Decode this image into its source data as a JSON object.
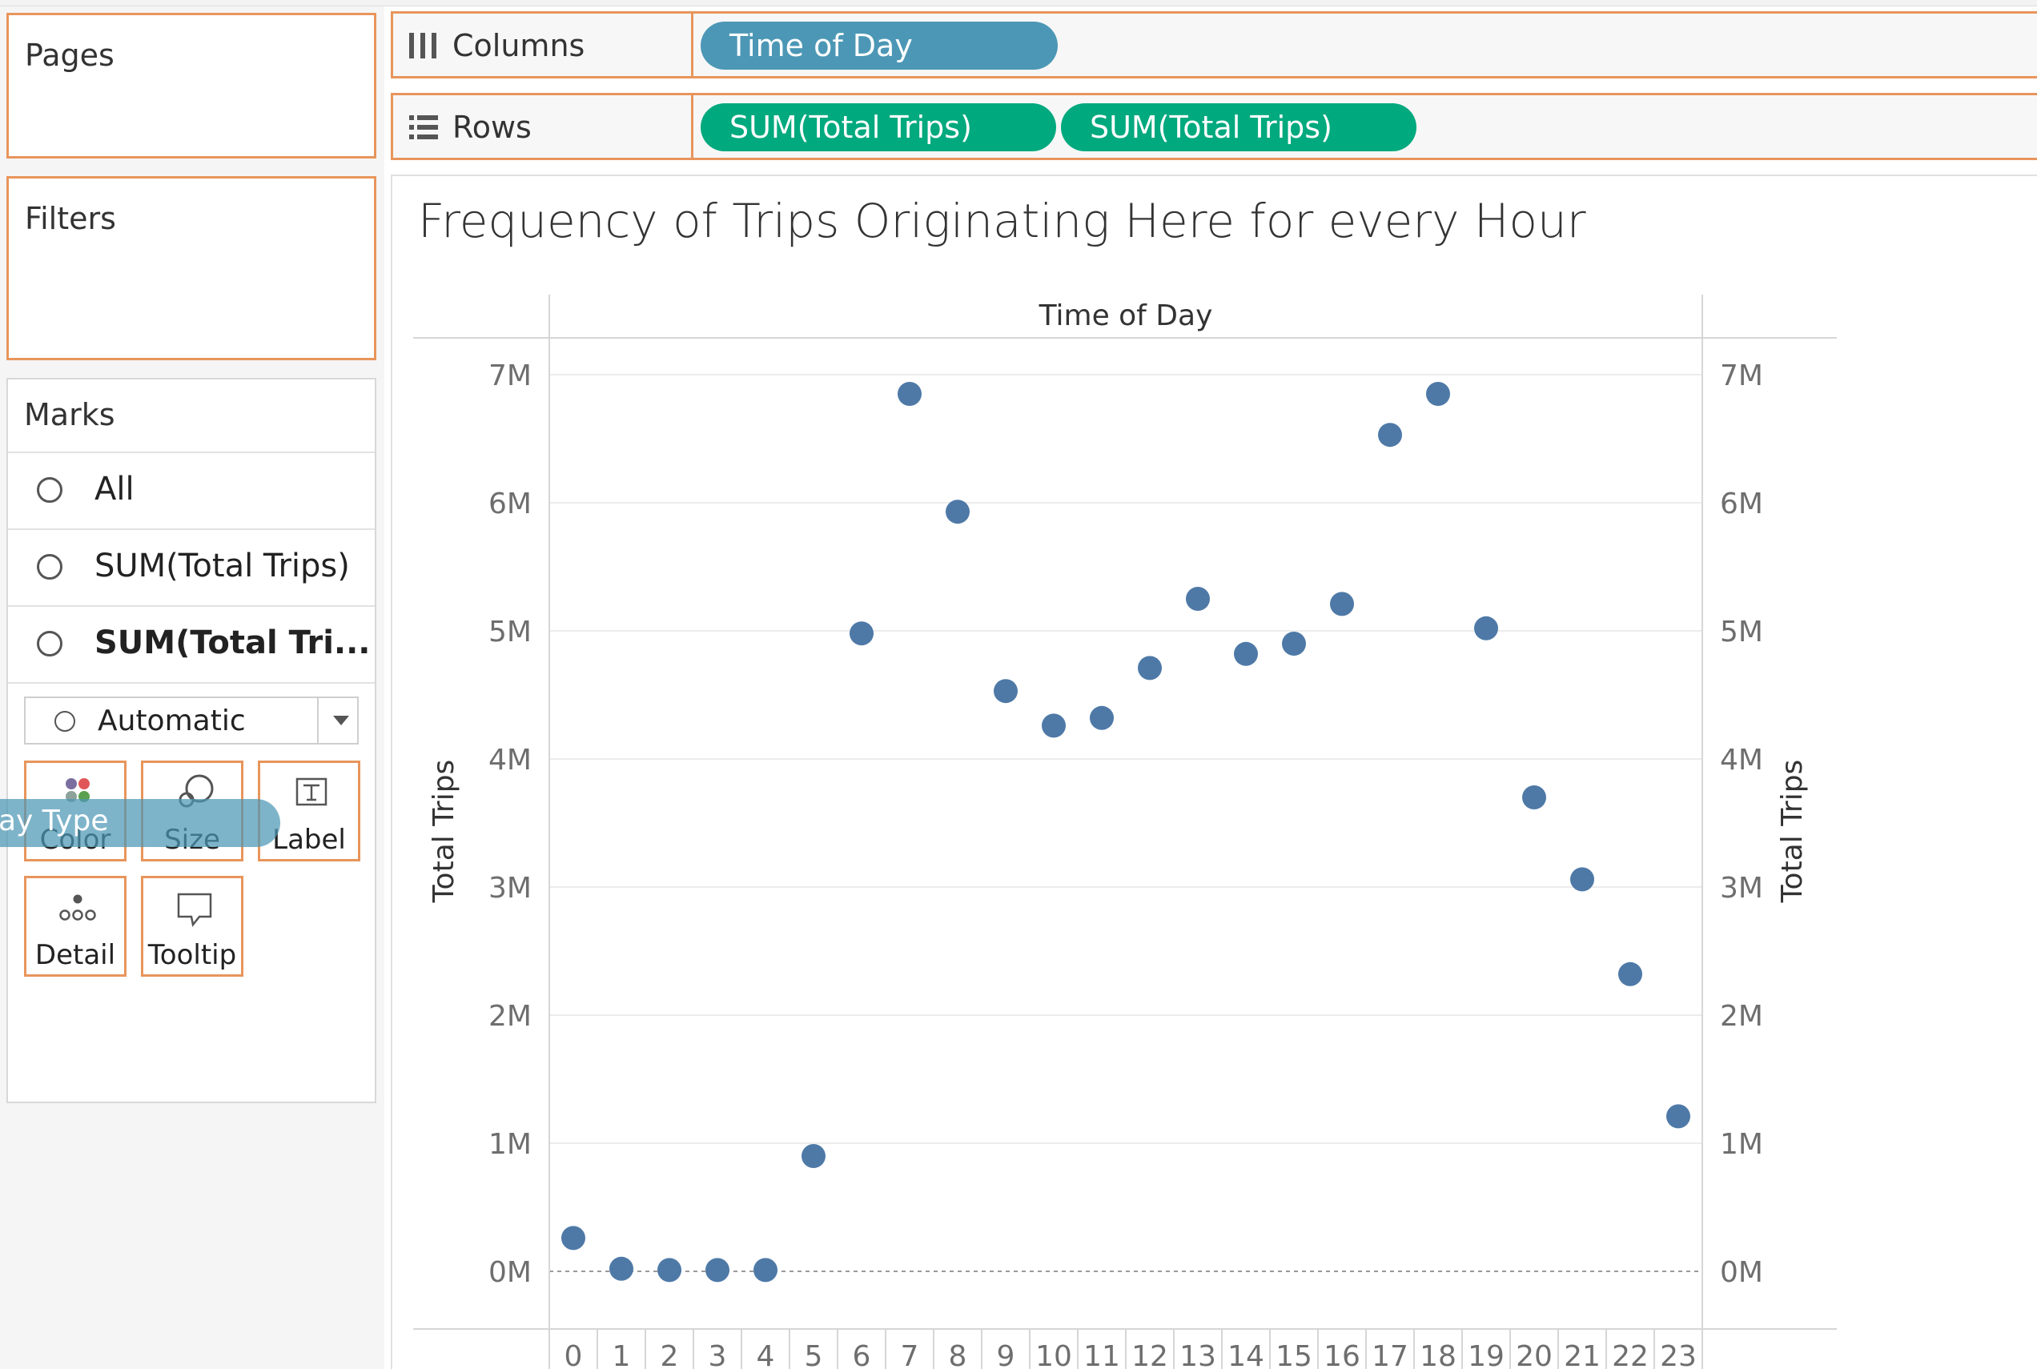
{
  "left_panels": {
    "pages_label": "Pages",
    "filters_label": "Filters",
    "marks": {
      "title": "Marks",
      "items": [
        {
          "label": "All"
        },
        {
          "label": "SUM(Total Trips)"
        },
        {
          "label": "SUM(Total Tri..."
        }
      ],
      "mark_type": "Automatic",
      "cards": [
        {
          "label": "Color",
          "icon": "color-dots-icon"
        },
        {
          "label": "Size",
          "icon": "size-circles-icon"
        },
        {
          "label": "Label",
          "icon": "text-label-icon"
        },
        {
          "label": "Detail",
          "icon": "detail-dots-icon"
        },
        {
          "label": "Tooltip",
          "icon": "tooltip-bubble-icon"
        }
      ],
      "dragged_pill": "ay Type"
    }
  },
  "shelves": {
    "columns_label": "Columns",
    "columns_pill": "Time of Day",
    "rows_label": "Rows",
    "rows_pills": [
      "SUM(Total Trips)",
      "SUM(Total Trips)"
    ]
  },
  "colors": {
    "accent_border": "#e8955c",
    "dimension_pill": "#4c97b5",
    "measure_pill": "#00a97e",
    "mark": "#4e79a7"
  },
  "chart_data": {
    "type": "scatter",
    "title": "Frequency of Trips Originating Here for every Hour",
    "xlabel": "Time of Day",
    "ylabel": "Total Trips",
    "ylabel_right": "Total Trips",
    "x": [
      0,
      1,
      2,
      3,
      4,
      5,
      6,
      7,
      8,
      9,
      10,
      11,
      12,
      13,
      14,
      15,
      16,
      17,
      18,
      19,
      20,
      21,
      22,
      23
    ],
    "values": [
      260000,
      20000,
      10000,
      10000,
      10000,
      900000,
      4980000,
      6850000,
      5930000,
      4530000,
      4260000,
      4320000,
      4710000,
      5250000,
      4820000,
      4900000,
      5210000,
      6530000,
      6850000,
      5020000,
      3700000,
      3060000,
      2320000,
      1210000
    ],
    "ylim": [
      0,
      7000000
    ],
    "y_ticks": [
      {
        "value": 0,
        "label": "0M"
      },
      {
        "value": 1000000,
        "label": "1M"
      },
      {
        "value": 2000000,
        "label": "2M"
      },
      {
        "value": 3000000,
        "label": "3M"
      },
      {
        "value": 4000000,
        "label": "4M"
      },
      {
        "value": 5000000,
        "label": "5M"
      },
      {
        "value": 6000000,
        "label": "6M"
      },
      {
        "value": 7000000,
        "label": "7M"
      }
    ],
    "x_tick_labels": [
      "0",
      "1",
      "2",
      "3",
      "4",
      "5",
      "6",
      "7",
      "8",
      "9",
      "10",
      "11",
      "12",
      "13",
      "14",
      "15",
      "16",
      "17",
      "18",
      "19",
      "20",
      "21",
      "22",
      "23"
    ],
    "grid": true,
    "dual_axis": true
  }
}
